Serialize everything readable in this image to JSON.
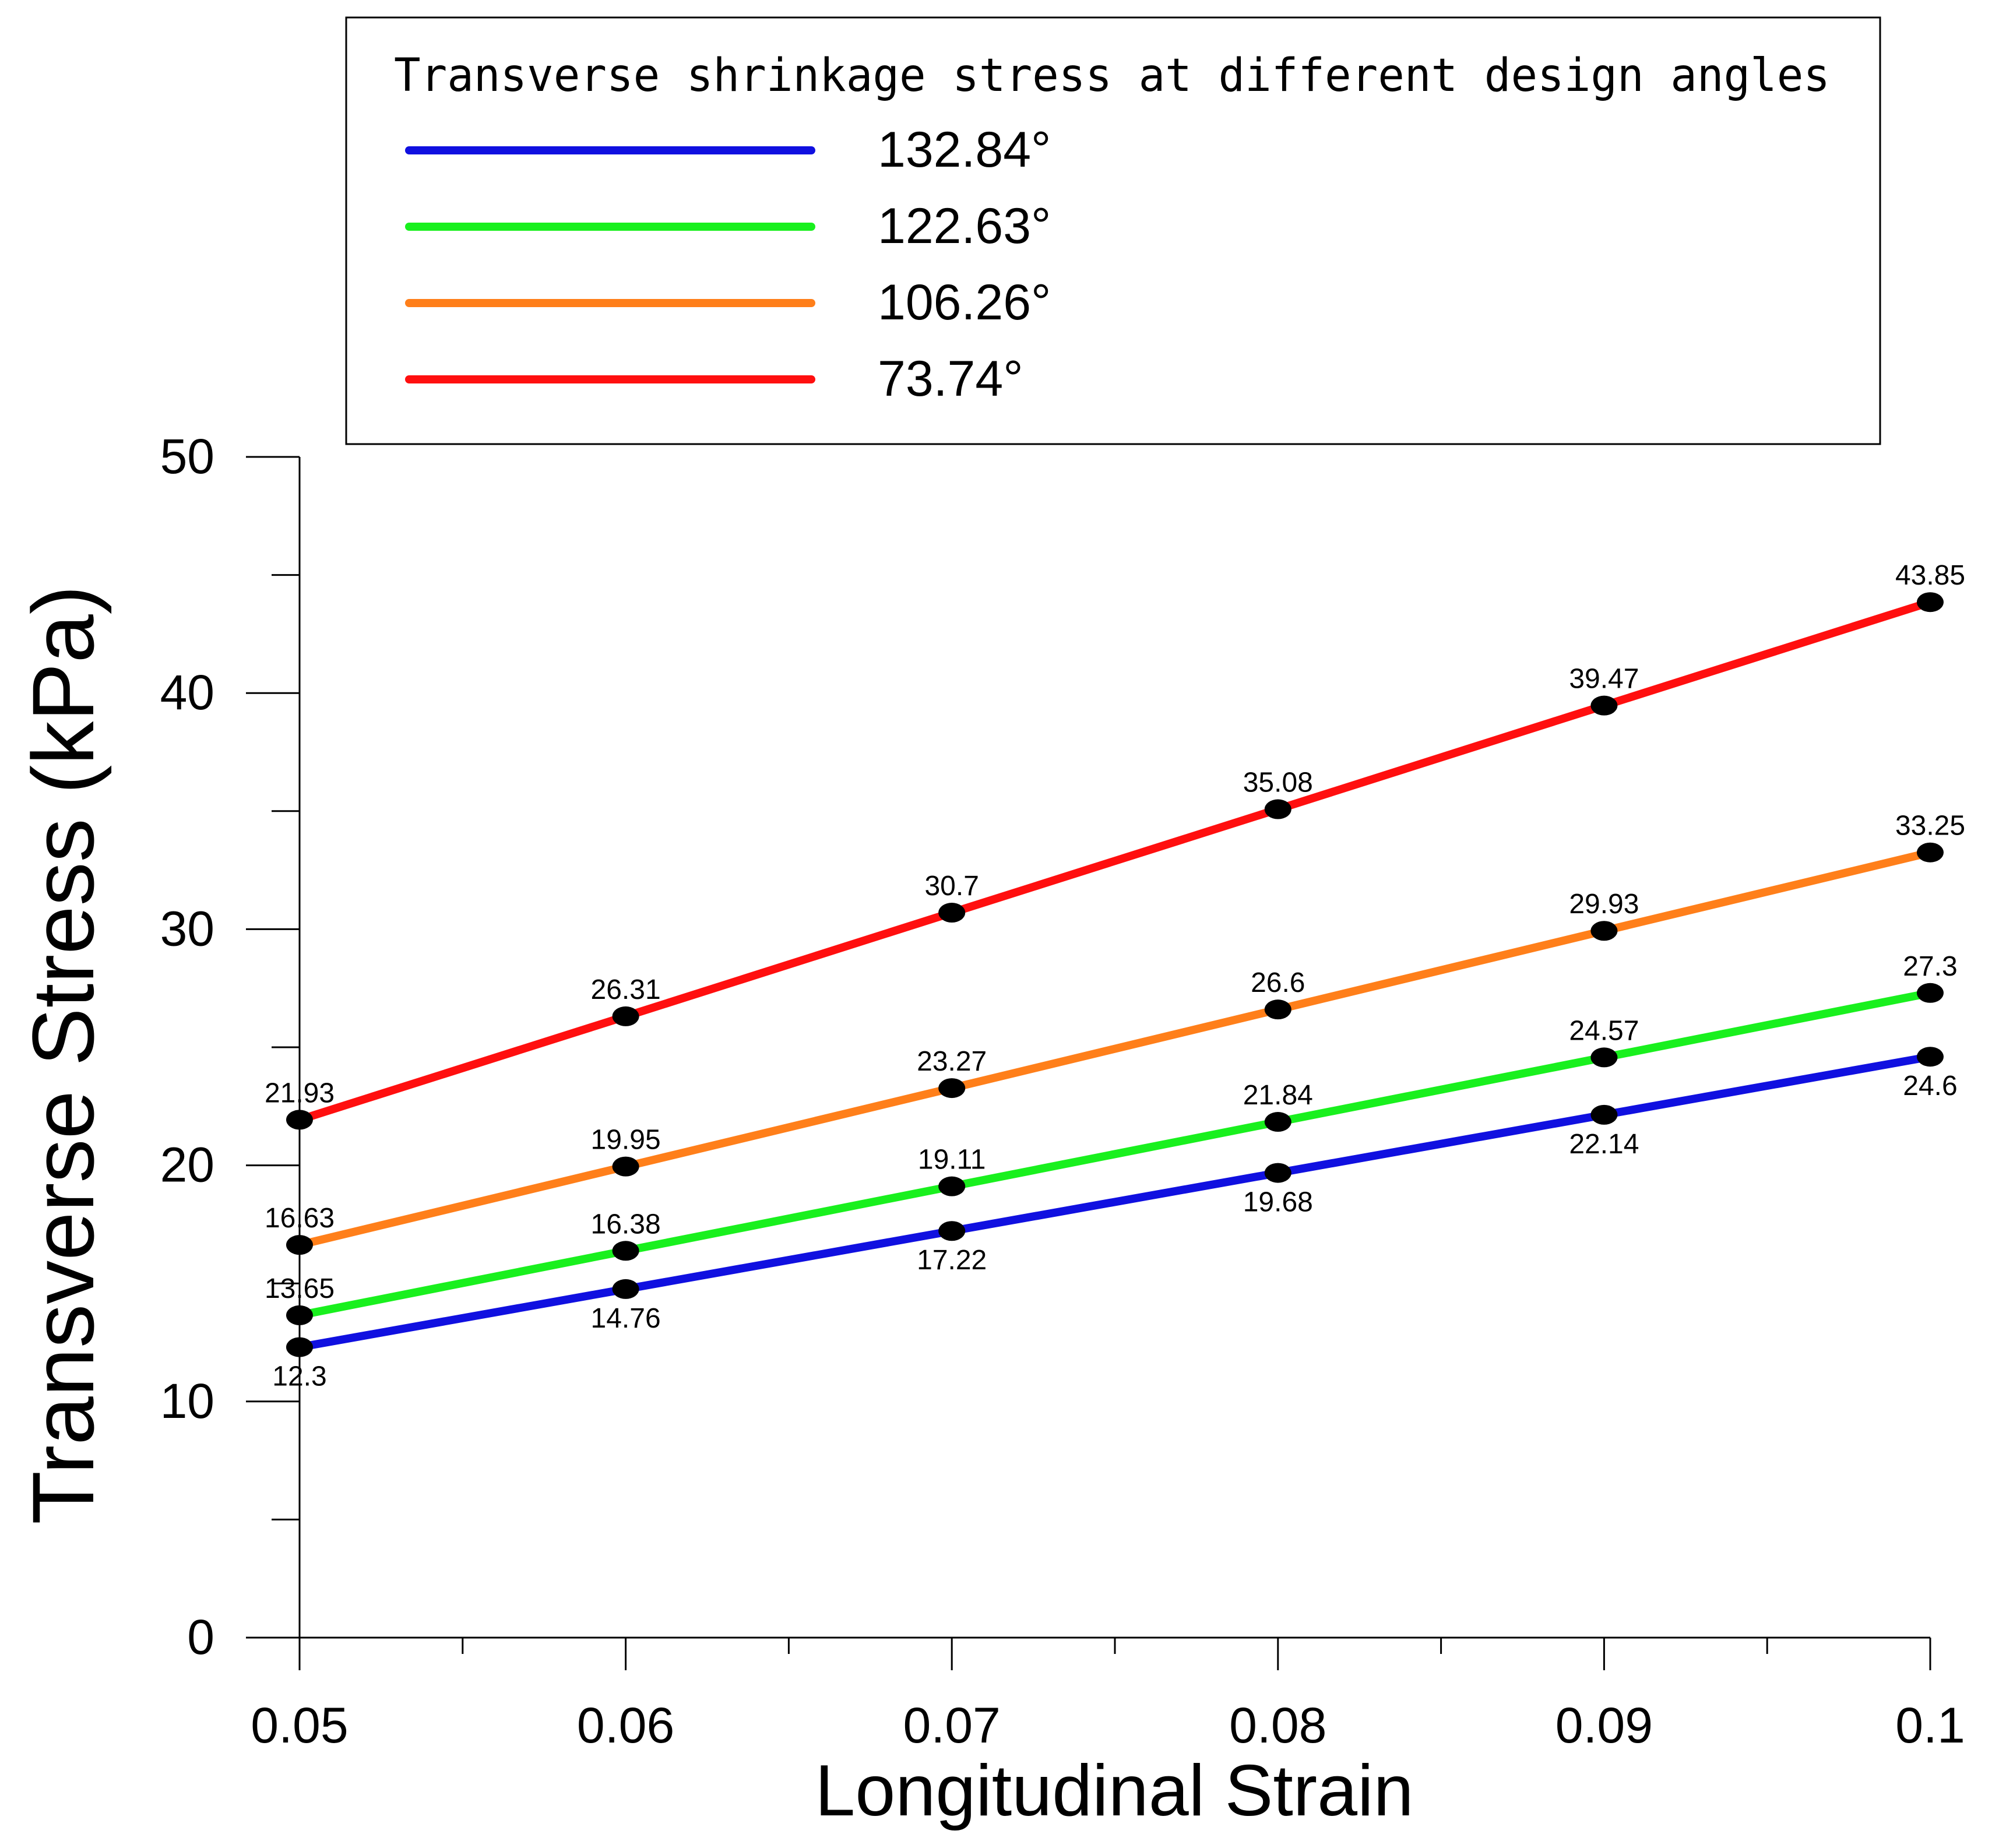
{
  "chart_data": {
    "type": "line",
    "title": "",
    "legend_title": "Transverse shrinkage stress at different design angles",
    "legend_position": "top",
    "xlabel": "Longitudinal Strain",
    "ylabel": "Transverse Stress (kPa)",
    "x": [
      0.05,
      0.06,
      0.07,
      0.08,
      0.09,
      0.1
    ],
    "x_tick_labels": [
      "0.05",
      "0.06",
      "0.07",
      "0.08",
      "0.09",
      "0.1"
    ],
    "y_ticks": [
      0,
      10,
      20,
      30,
      40,
      50
    ],
    "y_tick_labels": [
      "0",
      "10",
      "20",
      "30",
      "40",
      "50"
    ],
    "xlim": [
      0.05,
      0.1
    ],
    "ylim": [
      0,
      50
    ],
    "grid": false,
    "marker_color": "#000000",
    "series": [
      {
        "name": "132.84°",
        "color": "#1010e0",
        "values": [
          12.3,
          14.76,
          17.22,
          19.68,
          22.14,
          24.6
        ],
        "labels": [
          "12.3",
          "14.76",
          "17.22",
          "19.68",
          "22.14",
          "24.6"
        ],
        "label_side": "below"
      },
      {
        "name": "122.63°",
        "color": "#19f01e",
        "values": [
          13.65,
          16.38,
          19.11,
          21.84,
          24.57,
          27.3
        ],
        "labels": [
          "13.65",
          "16.38",
          "19.11",
          "21.84",
          "24.57",
          "27.3"
        ],
        "label_side": "above"
      },
      {
        "name": "106.26°",
        "color": "#ff7f1a",
        "values": [
          16.63,
          19.95,
          23.27,
          26.6,
          29.93,
          33.25
        ],
        "labels": [
          "16.63",
          "19.95",
          "23.27",
          "26.6",
          "29.93",
          "33.25"
        ],
        "label_side": "above"
      },
      {
        "name": "73.74°",
        "color": "#ff0f0f",
        "values": [
          21.93,
          26.31,
          30.7,
          35.08,
          39.47,
          43.85
        ],
        "labels": [
          "21.93",
          "26.31",
          "30.7",
          "35.08",
          "39.47",
          "43.85"
        ],
        "label_side": "above"
      }
    ]
  }
}
